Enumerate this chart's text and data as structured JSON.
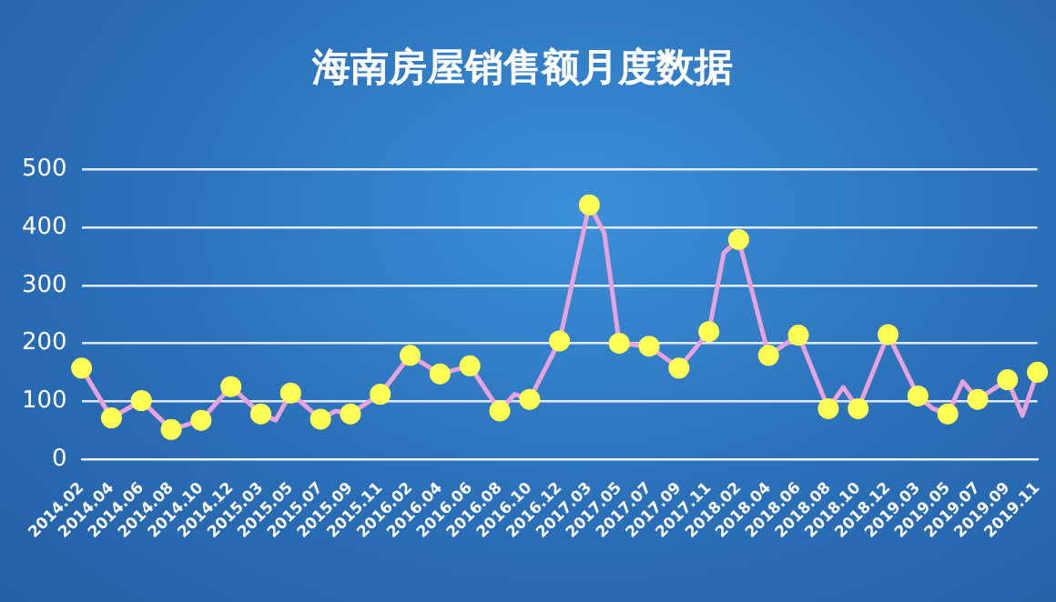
{
  "chart_data": {
    "type": "line",
    "title": "海南房屋销售额月度数据",
    "categories": [
      "2014.02",
      null,
      "2014.04",
      null,
      "2014.06",
      null,
      "2014.08",
      null,
      "2014.10",
      null,
      "2014.12",
      null,
      "2015.03",
      null,
      "2015.05",
      null,
      "2015.07",
      null,
      "2015.09",
      null,
      "2015.11",
      null,
      "2016.02",
      null,
      "2016.04",
      null,
      "2016.06",
      null,
      "2016.08",
      null,
      "2016.10",
      null,
      "2016.12",
      null,
      "2017.03",
      null,
      "2017.05",
      null,
      "2017.07",
      null,
      "2017.09",
      null,
      "2017.11",
      null,
      "2018.02",
      null,
      "2018.04",
      null,
      "2018.06",
      null,
      "2018.08",
      null,
      "2018.10",
      null,
      "2018.12",
      null,
      "2019.03",
      null,
      "2019.05",
      null,
      "2019.07",
      null,
      "2019.09",
      null,
      "2019.11"
    ],
    "series": [
      {
        "color": "#e9a3dc",
        "values": [
          157,
          null,
          71,
          null,
          101,
          null,
          51,
          null,
          67,
          null,
          125,
          null,
          78,
          67,
          114,
          null,
          69,
          83,
          78,
          null,
          112,
          null,
          179,
          null,
          147,
          null,
          161,
          null,
          83,
          112,
          103,
          null,
          204,
          null,
          439,
          390,
          200,
          null,
          195,
          null,
          157,
          null,
          220,
          356,
          379,
          null,
          179,
          null,
          214,
          null,
          87,
          124,
          87,
          null,
          215,
          null,
          109,
          87,
          78,
          134,
          103,
          null,
          137,
          75,
          150
        ]
      }
    ],
    "ylim": [
      0,
      500
    ],
    "yticks": [
      0,
      100,
      200,
      300,
      400,
      500
    ],
    "grid": "y",
    "marker": "circle",
    "line_style": "solid"
  }
}
